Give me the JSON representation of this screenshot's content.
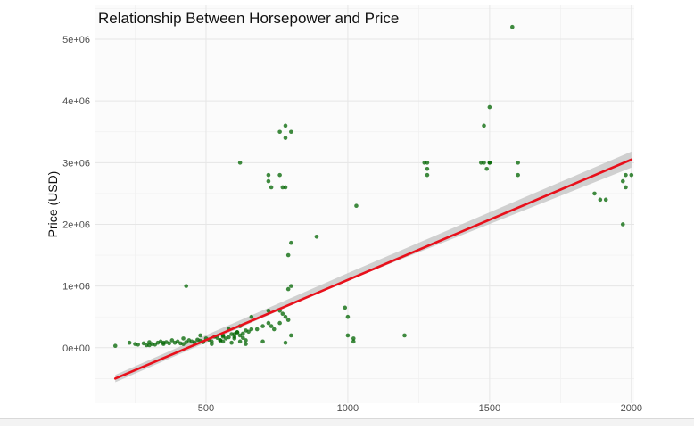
{
  "chart_data": {
    "type": "scatter",
    "title": "Relationship Between Horsepower and Price",
    "xlabel": "Horsepower (HP)",
    "ylabel": "Price (USD)",
    "xlim": [
      110,
      2010
    ],
    "ylim": [
      -900000,
      5550000
    ],
    "grid": true,
    "x_ticks": [
      500,
      1000,
      1500,
      2000
    ],
    "x_tick_labels": [
      "500",
      "1000",
      "1500",
      "2000"
    ],
    "y_ticks": [
      0,
      1000000,
      2000000,
      3000000,
      4000000,
      5000000
    ],
    "y_tick_labels": [
      "0e+00",
      "1e+06",
      "2e+06",
      "3e+06",
      "4e+06",
      "5e+06"
    ],
    "point_color": "#006400",
    "trend_color": "#e8101b",
    "band_color": "#bdbdbd",
    "trend_line": {
      "x": [
        180,
        2000
      ],
      "y": [
        -500000,
        3050000
      ]
    },
    "confidence_band": {
      "x": [
        180,
        1000,
        2000
      ],
      "lower": [
        -560000,
        1090000,
        2920000
      ],
      "upper": [
        -440000,
        1210000,
        3180000
      ]
    },
    "points": {
      "x": [
        180,
        230,
        250,
        260,
        280,
        290,
        300,
        310,
        320,
        330,
        340,
        350,
        360,
        370,
        380,
        390,
        400,
        410,
        420,
        430,
        440,
        450,
        460,
        470,
        480,
        490,
        500,
        510,
        520,
        530,
        540,
        550,
        560,
        570,
        580,
        590,
        600,
        610,
        620,
        630,
        640,
        650,
        660,
        300,
        350,
        420,
        480,
        520,
        560,
        600,
        640,
        580,
        610,
        620,
        560,
        600,
        630,
        550,
        590,
        620,
        640,
        660,
        680,
        700,
        720,
        730,
        740,
        760,
        770,
        780,
        790,
        800,
        720,
        760,
        700,
        780,
        430,
        620,
        760,
        780,
        800,
        720,
        730,
        760,
        780,
        720,
        770,
        780,
        790,
        800,
        890,
        790,
        800,
        990,
        1000,
        1030,
        1000,
        1020,
        1020,
        1200,
        1270,
        1280,
        1280,
        1280,
        1470,
        1480,
        1490,
        1500,
        1500,
        1480,
        1500,
        1600,
        1600,
        1870,
        1890,
        1910,
        1970,
        1980,
        1980,
        1970,
        2000,
        1580
      ],
      "y": [
        30000,
        80000,
        60000,
        50000,
        70000,
        40000,
        90000,
        60000,
        50000,
        80000,
        100000,
        60000,
        90000,
        70000,
        120000,
        80000,
        100000,
        70000,
        150000,
        90000,
        120000,
        100000,
        80000,
        130000,
        110000,
        90000,
        150000,
        130000,
        100000,
        180000,
        160000,
        120000,
        200000,
        150000,
        170000,
        220000,
        180000,
        250000,
        200000,
        230000,
        280000,
        260000,
        300000,
        40000,
        80000,
        60000,
        200000,
        60000,
        100000,
        150000,
        120000,
        300000,
        250000,
        350000,
        180000,
        220000,
        160000,
        120000,
        80000,
        100000,
        60000,
        500000,
        300000,
        350000,
        400000,
        350000,
        300000,
        400000,
        550000,
        500000,
        450000,
        200000,
        600000,
        600000,
        100000,
        80000,
        1000000,
        3000000,
        3500000,
        3400000,
        3500000,
        2800000,
        2600000,
        2800000,
        2600000,
        2700000,
        2600000,
        3600000,
        1500000,
        1700000,
        1800000,
        950000,
        1000000,
        650000,
        500000,
        2300000,
        200000,
        150000,
        100000,
        200000,
        3000000,
        3000000,
        2800000,
        2900000,
        3000000,
        3000000,
        2900000,
        3000000,
        3900000,
        3600000,
        3000000,
        3000000,
        2800000,
        2500000,
        2400000,
        2400000,
        2700000,
        2800000,
        2600000,
        2000000,
        2800000,
        5200000
      ]
    }
  }
}
